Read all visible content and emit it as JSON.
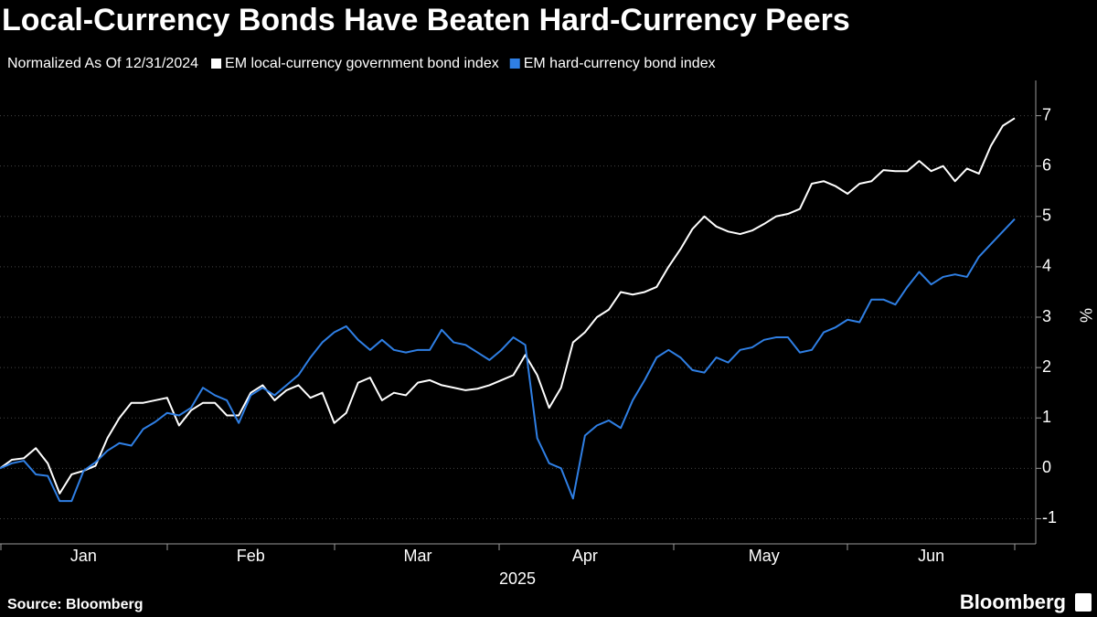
{
  "chart_data": {
    "type": "line",
    "title": "Local-Currency Bonds Have Beaten Hard-Currency Peers",
    "subtitle": "Normalized As Of 12/31/2024",
    "xlabel": "2025",
    "ylabel": "%",
    "categories": [
      null,
      null,
      null,
      null,
      null,
      null,
      null,
      "Jan",
      null,
      null,
      null,
      null,
      null,
      null,
      null,
      null,
      null,
      null,
      null,
      null,
      null,
      "Feb",
      null,
      null,
      null,
      null,
      null,
      null,
      null,
      null,
      null,
      null,
      null,
      null,
      null,
      "Mar",
      null,
      null,
      null,
      null,
      null,
      null,
      null,
      null,
      null,
      null,
      null,
      null,
      null,
      "Apr",
      null,
      null,
      null,
      null,
      null,
      null,
      null,
      null,
      null,
      null,
      null,
      null,
      null,
      null,
      "May",
      null,
      null,
      null,
      null,
      null,
      null,
      null,
      null,
      null,
      null,
      null,
      null,
      null,
      "Jun",
      null,
      null,
      null,
      null,
      null,
      null,
      null
    ],
    "series": [
      {
        "name": "EM local-currency government bond index",
        "color": "#ffffff",
        "values": [
          0,
          0.17,
          0.2,
          0.4,
          0.1,
          -0.5,
          -0.12,
          -0.05,
          0.05,
          0.6,
          1.0,
          1.3,
          1.3,
          1.35,
          1.4,
          0.85,
          1.15,
          1.3,
          1.3,
          1.05,
          1.05,
          1.5,
          1.65,
          1.35,
          1.55,
          1.65,
          1.4,
          1.5,
          0.9,
          1.1,
          1.7,
          1.8,
          1.35,
          1.5,
          1.45,
          1.7,
          1.75,
          1.65,
          1.6,
          1.55,
          1.58,
          1.65,
          1.75,
          1.85,
          2.25,
          1.85,
          1.2,
          1.6,
          2.5,
          2.7,
          3.0,
          3.15,
          3.5,
          3.45,
          3.5,
          3.6,
          4.0,
          4.35,
          4.75,
          5.0,
          4.8,
          4.7,
          4.65,
          4.72,
          4.85,
          5.0,
          5.05,
          5.15,
          5.65,
          5.7,
          5.6,
          5.45,
          5.65,
          5.7,
          5.92,
          5.9,
          5.9,
          6.1,
          5.9,
          6.0,
          5.7,
          5.95,
          5.85,
          6.4,
          6.8,
          6.95
        ]
      },
      {
        "name": "EM hard-currency bond index",
        "color": "#2f7fe4",
        "values": [
          0,
          0.1,
          0.15,
          -0.12,
          -0.15,
          -0.65,
          -0.65,
          -0.05,
          0.12,
          0.35,
          0.5,
          0.45,
          0.78,
          0.92,
          1.1,
          1.05,
          1.2,
          1.6,
          1.45,
          1.35,
          0.9,
          1.45,
          1.6,
          1.45,
          1.65,
          1.85,
          2.2,
          2.5,
          2.7,
          2.82,
          2.55,
          2.35,
          2.55,
          2.35,
          2.3,
          2.35,
          2.35,
          2.75,
          2.5,
          2.45,
          2.3,
          2.15,
          2.35,
          2.6,
          2.45,
          0.6,
          0.1,
          0.0,
          -0.6,
          0.65,
          0.85,
          0.95,
          0.8,
          1.35,
          1.75,
          2.2,
          2.35,
          2.2,
          1.95,
          1.9,
          2.2,
          2.1,
          2.35,
          2.4,
          2.55,
          2.6,
          2.6,
          2.3,
          2.35,
          2.7,
          2.8,
          2.95,
          2.9,
          3.35,
          3.35,
          3.25,
          3.6,
          3.9,
          3.65,
          3.8,
          3.85,
          3.8,
          4.2,
          4.45,
          4.7,
          4.95
        ]
      }
    ],
    "ylim": [
      -1.5,
      7.7
    ],
    "yticks": [
      -1,
      0,
      1,
      2,
      3,
      4,
      5,
      6,
      7
    ],
    "grid": true
  },
  "footer": {
    "source": "Source: Bloomberg",
    "brand": "Bloomberg"
  }
}
